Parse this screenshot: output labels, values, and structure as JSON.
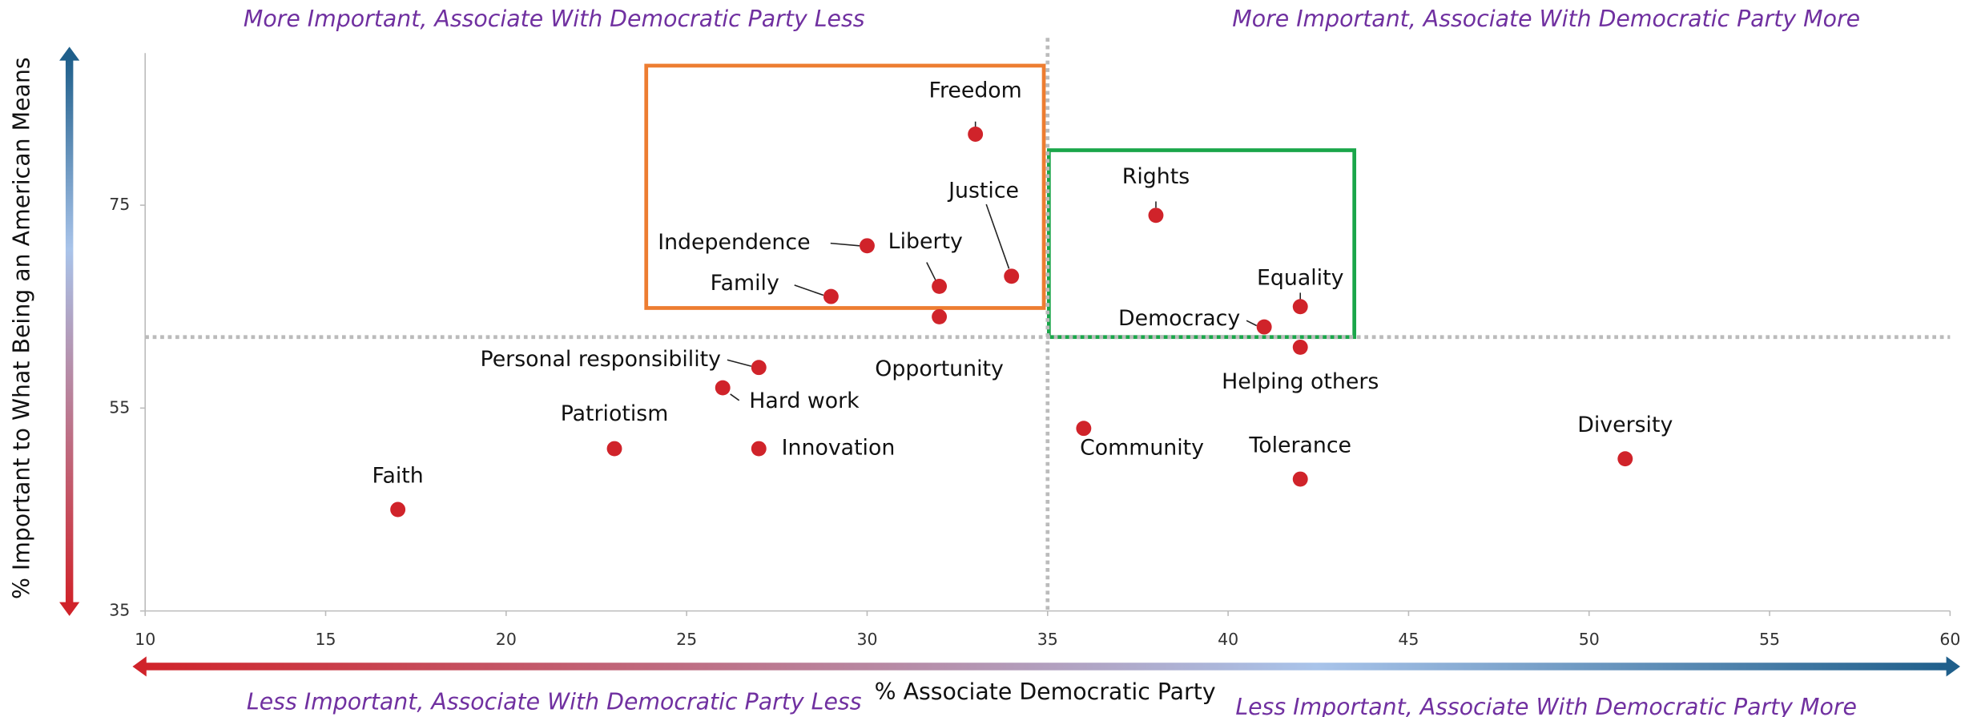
{
  "chart_data": {
    "type": "scatter",
    "xlabel": "% Associate Democratic Party",
    "ylabel": "% Important to What Being an American Means",
    "annotations": [
      "More Important, Associate With Democratic Party Less",
      "More Important, Associate With Democratic Party More",
      "Less Important, Associate With Democratic Party Less",
      "Less Important, Associate With Democratic Party More"
    ],
    "color": "#d0232a",
    "labels": [
      "Freedom",
      "Justice",
      "Independence",
      "Liberty",
      "Family",
      "Opportunity",
      "Rights",
      "Equality",
      "Democracy",
      "Helping others",
      "Personal responsibility",
      "Hard work",
      "Patriotism",
      "Innovation",
      "Faith",
      "Community",
      "Tolerance",
      "Diversity"
    ],
    "x": [
      33,
      34,
      30,
      32,
      29,
      32,
      38,
      42,
      41,
      42,
      27,
      26,
      23,
      27,
      17,
      36,
      42,
      51
    ],
    "values": [
      82,
      68,
      71,
      67,
      66,
      64,
      74,
      65,
      63,
      61,
      59,
      57,
      51,
      51,
      45,
      53,
      48,
      50
    ],
    "xlim": [
      10,
      60
    ],
    "ylim": [
      35,
      90
    ],
    "xticks": [
      10,
      15,
      20,
      25,
      30,
      35,
      40,
      45,
      50,
      55,
      60
    ],
    "yticks": [
      35,
      55,
      75
    ],
    "reference_lines": {
      "x": 35,
      "y": 62
    }
  }
}
